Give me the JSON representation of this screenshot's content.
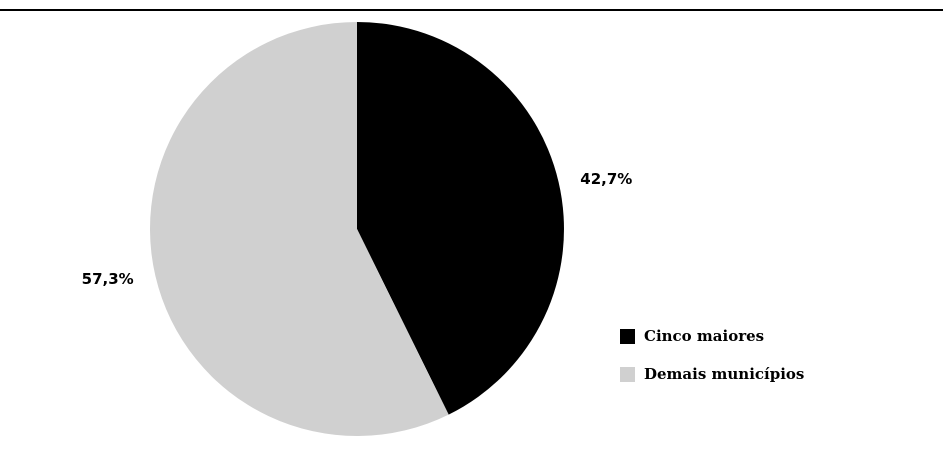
{
  "chart_data": {
    "type": "pie",
    "title": "",
    "slices": [
      {
        "label": "Cinco maiores",
        "value": 42.7,
        "value_label": "42,7%",
        "color": "#000000"
      },
      {
        "label": "Demais municípios",
        "value": 57.3,
        "value_label": "57,3%",
        "color": "#d0d0d0"
      }
    ],
    "start_angle_deg": 0,
    "direction": "clockwise",
    "legend_position": "right"
  }
}
